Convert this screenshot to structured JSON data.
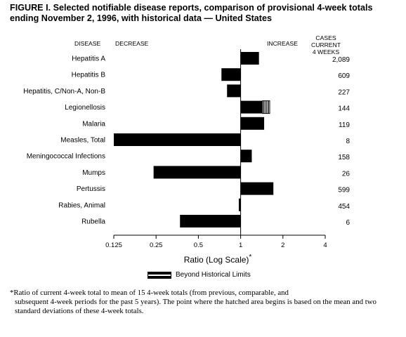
{
  "title": "FIGURE I. Selected notifiable disease reports, comparison of provisional 4-week totals ending November 2, 1996, with historical data — United States",
  "headers": {
    "disease": "DISEASE",
    "decrease": "DECREASE",
    "increase": "INCREASE",
    "cases_line1": "CASES CURRENT",
    "cases_line2": "4 WEEKS"
  },
  "axis_label": "Ratio (Log Scale)",
  "axis_label_mark": "*",
  "legend_label": "Beyond Historical Limits",
  "footnote_line1": "*Ratio of current 4-week total to mean of 15 4-week totals (from previous, comparable, and",
  "footnote_rest": "subsequent 4-week periods for the past 5 years). The point where the hatched area begins is based on the mean and two standard deviations of these 4-week totals.",
  "colors": {
    "bar": "#000000",
    "hatch_bg": "#ffffff"
  },
  "chart_data": {
    "type": "bar",
    "orientation": "horizontal",
    "x_scale": "log",
    "baseline": 1,
    "xlim": [
      0.125,
      4
    ],
    "ticks": [
      {
        "value": 0.125,
        "label": "0.125"
      },
      {
        "value": 0.25,
        "label": "0.25"
      },
      {
        "value": 0.5,
        "label": "0.5"
      },
      {
        "value": 1,
        "label": "1"
      },
      {
        "value": 2,
        "label": "2"
      },
      {
        "value": 4,
        "label": "4"
      }
    ],
    "categories": [
      "Hepatitis A",
      "Hepatitis B",
      "Hepatitis, C/Non-A, Non-B",
      "Legionellosis",
      "Malaria",
      "Measles, Total",
      "Meningococcal Infections",
      "Mumps",
      "Pertussis",
      "Rabies, Animal",
      "Rubella"
    ],
    "ratios": [
      1.35,
      0.73,
      0.8,
      1.61,
      1.47,
      0.125,
      1.2,
      0.24,
      1.71,
      0.97,
      0.37
    ],
    "beyond_limits_from": [
      null,
      null,
      null,
      1.43,
      null,
      null,
      null,
      null,
      null,
      null,
      null
    ],
    "cases_current_4_weeks": [
      "2,089",
      "609",
      "227",
      "144",
      "119",
      "8",
      "158",
      "26",
      "599",
      "454",
      "6"
    ]
  }
}
